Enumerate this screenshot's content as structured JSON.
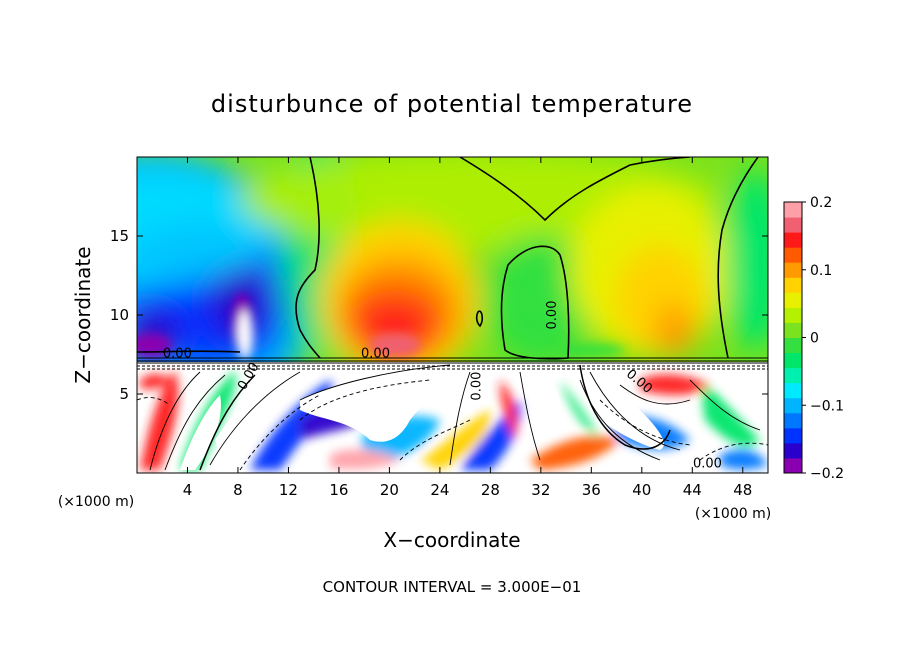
{
  "chart_data": {
    "type": "heatmap",
    "title": "disturbunce of potential temperature",
    "xlabel": "X−coordinate",
    "ylabel": "Z−coordinate",
    "x_unit_left": "(×1000 m)",
    "x_unit_right": "(×1000 m)",
    "footer": "CONTOUR INTERVAL = 3.000E−01",
    "xlim": [
      0,
      50
    ],
    "ylim": [
      0,
      20
    ],
    "x_ticks": [
      4,
      8,
      12,
      16,
      20,
      24,
      28,
      32,
      36,
      40,
      44,
      48
    ],
    "x_tick_labels": [
      "4",
      "8",
      "12",
      "16",
      "20",
      "24",
      "28",
      "32",
      "36",
      "40",
      "44",
      "48"
    ],
    "y_ticks": [
      5,
      10,
      15
    ],
    "y_tick_labels": [
      "5",
      "10",
      "15"
    ],
    "colorbar": {
      "range": [
        -0.2,
        0.2
      ],
      "ticks": [
        0.2,
        0.1,
        0,
        -0.1,
        -0.2
      ],
      "tick_labels": [
        "0.2",
        "0.1",
        "0",
        "−0.1",
        "−0.2"
      ],
      "colors": [
        "#8a00b0",
        "#2a00cc",
        "#0033ff",
        "#0077ff",
        "#00b4ff",
        "#00eaff",
        "#00f0b0",
        "#00e66a",
        "#33e040",
        "#7ae21e",
        "#b4f000",
        "#e8f000",
        "#ffd200",
        "#ff9a00",
        "#ff5a00",
        "#ff1a1a",
        "#f06070",
        "#ffa0a8"
      ]
    },
    "contour_labels": [
      {
        "text": "0.00",
        "x": 3.2,
        "y": 7.3
      },
      {
        "text": "0.00",
        "x": 18.9,
        "y": 7.3
      },
      {
        "text": "0.00",
        "x": 33.2,
        "y": 10.0,
        "rotate": -90
      },
      {
        "text": "0.00",
        "x": 27.2,
        "y": 5.5,
        "rotate": -90
      },
      {
        "text": "0.00",
        "x": 9.1,
        "y": 6.0,
        "rotate": -60
      },
      {
        "text": "0.00",
        "x": 39.6,
        "y": 5.6,
        "rotate": 40
      },
      {
        "text": "0.00",
        "x": 45.2,
        "y": 0.35
      }
    ],
    "field_regions": [
      {
        "kind": "warm",
        "x": 20.0,
        "z": 10.0,
        "peak": 0.16
      },
      {
        "kind": "warm",
        "x": 41.5,
        "z": 13.0,
        "peak": 0.08
      },
      {
        "kind": "cold",
        "x": 7.5,
        "z": 11.5,
        "peak": -0.17
      },
      {
        "kind": "cold",
        "x": 2.0,
        "z": 9.5,
        "peak": -0.16
      }
    ]
  }
}
